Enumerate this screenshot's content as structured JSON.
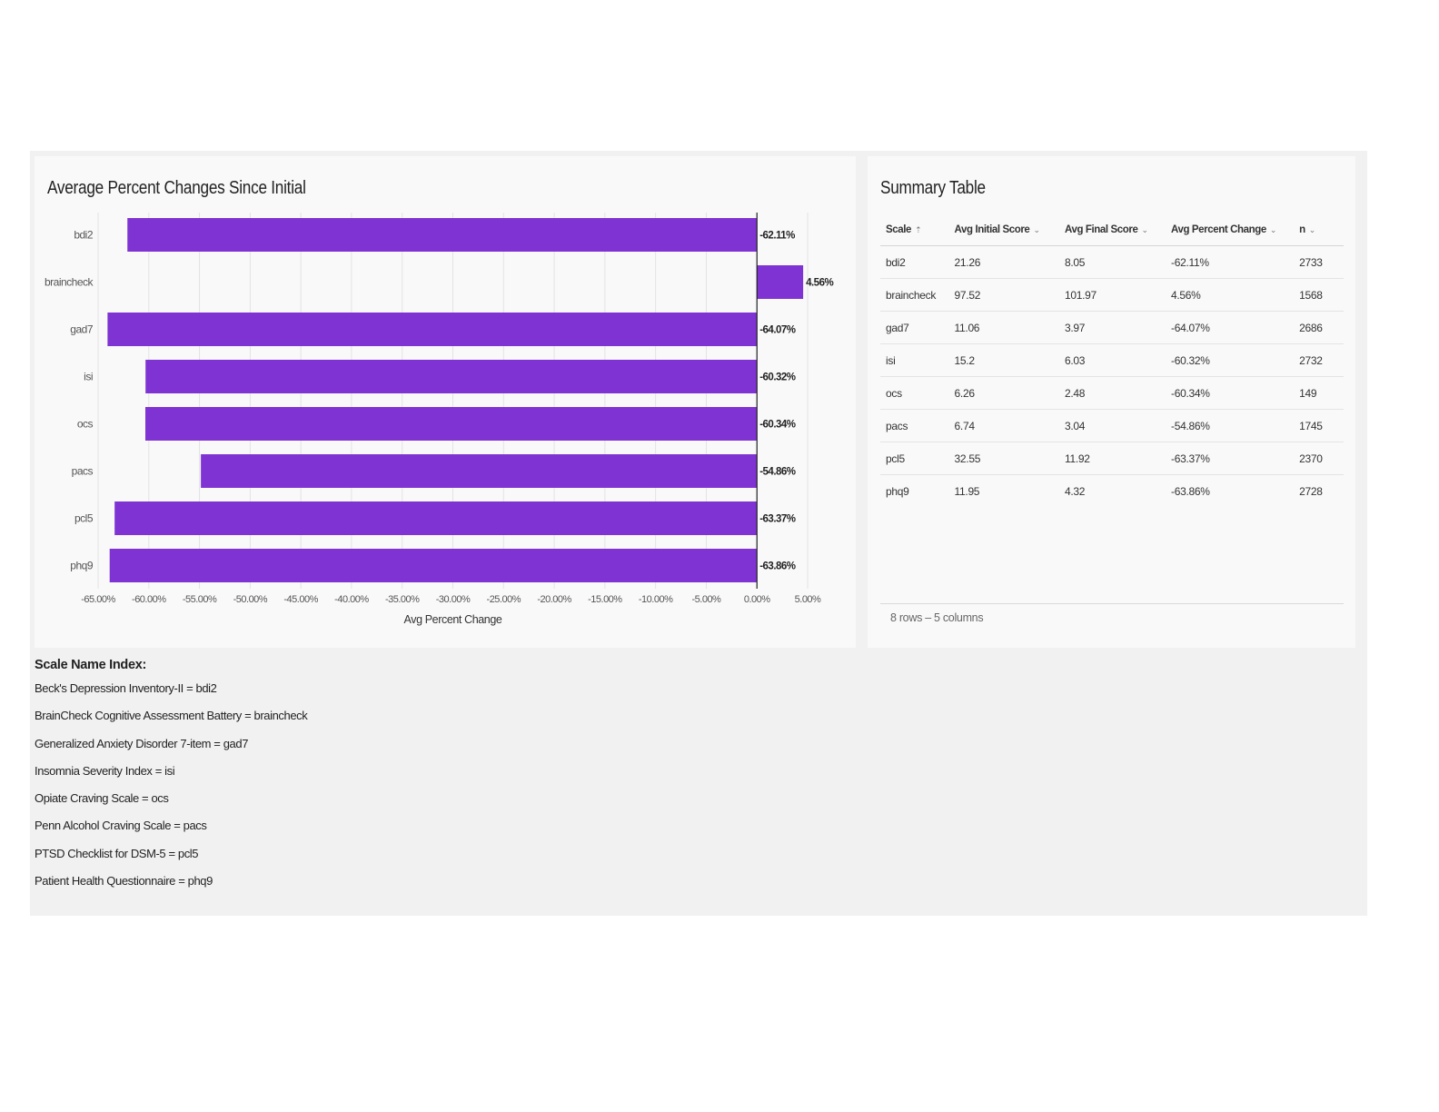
{
  "chart": {
    "title": "Average Percent Changes Since Initial",
    "bar_color": "#7e33d2"
  },
  "chart_data": {
    "type": "bar",
    "orientation": "horizontal",
    "title": "Average Percent Changes Since Initial",
    "xlabel": "Avg Percent Change",
    "ylabel": "",
    "categories": [
      "bdi2",
      "braincheck",
      "gad7",
      "isi",
      "ocs",
      "pacs",
      "pcl5",
      "phq9"
    ],
    "values": [
      -62.11,
      4.56,
      -64.07,
      -60.32,
      -60.34,
      -54.86,
      -63.37,
      -63.86
    ],
    "data_labels": [
      "-62.11%",
      "4.56%",
      "-64.07%",
      "-60.32%",
      "-60.34%",
      "-54.86%",
      "-63.37%",
      "-63.86%"
    ],
    "xlim": [
      -65,
      5
    ],
    "x_ticks": [
      -65,
      -60,
      -55,
      -50,
      -45,
      -40,
      -35,
      -30,
      -25,
      -20,
      -15,
      -10,
      -5,
      0,
      5
    ],
    "x_tick_labels": [
      "-65.00%",
      "-60.00%",
      "-55.00%",
      "-50.00%",
      "-45.00%",
      "-40.00%",
      "-35.00%",
      "-30.00%",
      "-25.00%",
      "-20.00%",
      "-15.00%",
      "-10.00%",
      "-5.00%",
      "0.00%",
      "5.00%"
    ],
    "grid": true,
    "legend": "none"
  },
  "table": {
    "title": "Summary Table",
    "columns": [
      "Scale",
      "Avg Initial Score",
      "Avg Final Score",
      "Avg Percent Change",
      "n"
    ],
    "column_icons": [
      "sort-asc-icon",
      "chevron-down-icon",
      "chevron-down-icon",
      "chevron-down-icon",
      "chevron-down-icon"
    ],
    "rows": [
      [
        "bdi2",
        "21.26",
        "8.05",
        "-62.11%",
        "2733"
      ],
      [
        "braincheck",
        "97.52",
        "101.97",
        "4.56%",
        "1568"
      ],
      [
        "gad7",
        "11.06",
        "3.97",
        "-64.07%",
        "2686"
      ],
      [
        "isi",
        "15.2",
        "6.03",
        "-60.32%",
        "2732"
      ],
      [
        "ocs",
        "6.26",
        "2.48",
        "-60.34%",
        "149"
      ],
      [
        "pacs",
        "6.74",
        "3.04",
        "-54.86%",
        "1745"
      ],
      [
        "pcl5",
        "32.55",
        "11.92",
        "-63.37%",
        "2370"
      ],
      [
        "phq9",
        "11.95",
        "4.32",
        "-63.86%",
        "2728"
      ]
    ],
    "footer": "8 rows – 5 columns"
  },
  "index": {
    "title": "Scale Name Index:",
    "lines": [
      "Beck's Depression Inventory-II = bdi2",
      "BrainCheck Cognitive Assessment Battery = braincheck",
      "Generalized Anxiety Disorder 7-item = gad7",
      "Insomnia Severity Index = isi",
      "Opiate Craving Scale = ocs",
      "Penn Alcohol Craving Scale = pacs",
      "PTSD Checklist for DSM-5 = pcl5",
      "Patient Health Questionnaire = phq9"
    ]
  }
}
